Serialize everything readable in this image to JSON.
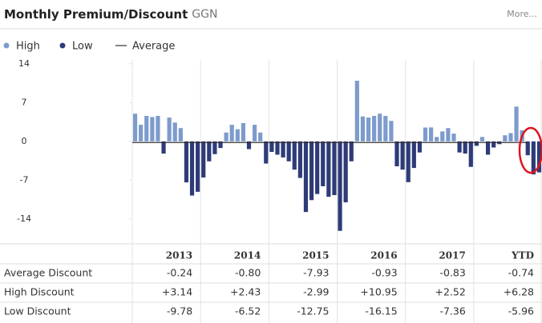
{
  "header": {
    "title": "Monthly Premium/Discount",
    "ticker": "GGN",
    "more": "More..."
  },
  "chart_data": {
    "type": "bar",
    "categories": [
      null,
      null,
      null,
      null,
      null,
      null,
      null,
      null,
      null,
      null,
      null,
      null,
      null,
      null,
      null,
      null,
      null,
      null,
      null,
      null,
      null,
      null,
      null,
      null,
      null,
      null,
      null,
      null,
      null,
      null,
      null,
      null,
      null,
      null,
      null,
      null,
      null,
      null,
      null,
      null,
      null,
      null,
      null,
      null,
      null,
      null,
      null,
      null,
      null,
      null,
      null,
      null,
      null,
      null,
      null,
      null,
      null,
      null,
      null,
      null,
      null,
      null,
      null,
      null,
      null,
      null,
      null,
      null,
      null,
      null,
      null,
      null
    ],
    "series": [
      {
        "name": "High",
        "color": "#7d9bcc",
        "values": [
          5.0,
          3.0,
          4.6,
          4.4,
          4.6,
          null,
          4.3,
          3.4,
          2.4,
          null,
          null,
          null,
          null,
          null,
          null,
          null,
          1.6,
          3.0,
          2.2,
          3.3,
          null,
          3.0,
          1.6,
          null,
          null,
          null,
          null,
          null,
          null,
          null,
          null,
          null,
          null,
          null,
          null,
          null,
          null,
          null,
          null,
          10.95,
          4.5,
          4.3,
          4.6,
          5.0,
          4.6,
          3.7,
          null,
          null,
          null,
          null,
          null,
          2.5,
          2.52,
          0.8,
          1.8,
          2.4,
          1.4,
          null,
          null,
          null,
          null,
          0.8,
          null,
          null,
          null,
          1.1,
          1.5,
          6.28,
          2.0,
          null,
          null,
          null
        ]
      },
      {
        "name": "Low",
        "color": "#2e3b78",
        "values": [
          null,
          null,
          null,
          null,
          null,
          -2.2,
          null,
          null,
          null,
          -7.4,
          -9.78,
          -9.1,
          -6.52,
          -3.6,
          -2.3,
          -1.2,
          null,
          null,
          null,
          null,
          -1.4,
          null,
          null,
          -4.0,
          -1.9,
          -2.4,
          -2.9,
          -3.6,
          -5.1,
          -6.6,
          -12.75,
          -10.6,
          -9.5,
          -8.1,
          -10.0,
          -9.7,
          -16.15,
          -11.0,
          -3.6,
          null,
          null,
          null,
          null,
          null,
          null,
          null,
          -4.5,
          -5.1,
          -7.36,
          -4.8,
          -2.0,
          null,
          null,
          null,
          null,
          null,
          null,
          -2.0,
          -2.2,
          -4.6,
          -0.8,
          null,
          -2.4,
          -1.1,
          -0.5,
          null,
          null,
          null,
          null,
          -2.5,
          -5.96,
          -5.6
        ]
      }
    ],
    "average": {
      "name": "Average",
      "color": "#333333",
      "value": -0.2
    },
    "ylim": [
      -18.5,
      14.7
    ],
    "yticks": [
      14,
      7,
      0,
      -7,
      -14
    ]
  },
  "table": {
    "header": [
      "2013",
      "2014",
      "2015",
      "2016",
      "2017",
      "YTD"
    ],
    "rows": [
      {
        "label": "Average Discount",
        "values": [
          "-0.24",
          "-0.80",
          "-7.93",
          "-0.93",
          "-0.83",
          "-0.74"
        ]
      },
      {
        "label": "High Discount",
        "values": [
          "+3.14",
          "+2.43",
          "-2.99",
          "+10.95",
          "+2.52",
          "+6.28"
        ]
      },
      {
        "label": "Low Discount",
        "values": [
          "-9.78",
          "-6.52",
          "-12.75",
          "-16.15",
          "-7.36",
          "-5.96"
        ]
      }
    ]
  }
}
